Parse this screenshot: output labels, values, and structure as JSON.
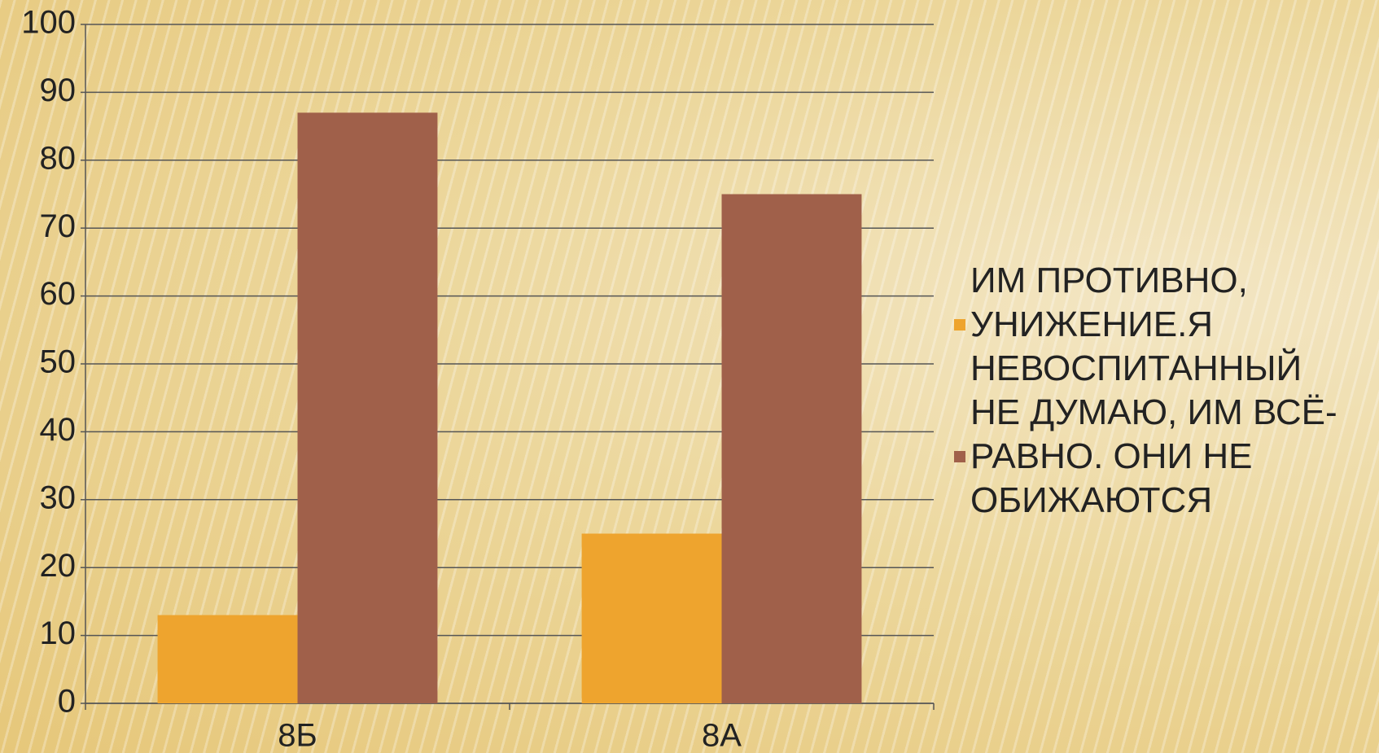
{
  "chart_data": {
    "type": "bar",
    "categories": [
      "8Б",
      "8А"
    ],
    "series": [
      {
        "name": "ИМ ПРОТИВНО, УНИЖЕНИЕ.Я НЕВОСПИТАННЫЙ",
        "color": "#eea42e",
        "values": [
          13,
          25
        ]
      },
      {
        "name": "НЕ ДУМАЮ, ИМ ВСЁ-РАВНО. ОНИ НЕ ОБИЖАЮТСЯ",
        "color": "#a0604a",
        "values": [
          87,
          75
        ]
      }
    ],
    "ylim": [
      0,
      100
    ],
    "yticks": [
      0,
      10,
      20,
      30,
      40,
      50,
      60,
      70,
      80,
      90,
      100
    ],
    "grid": true,
    "legend": "right"
  }
}
